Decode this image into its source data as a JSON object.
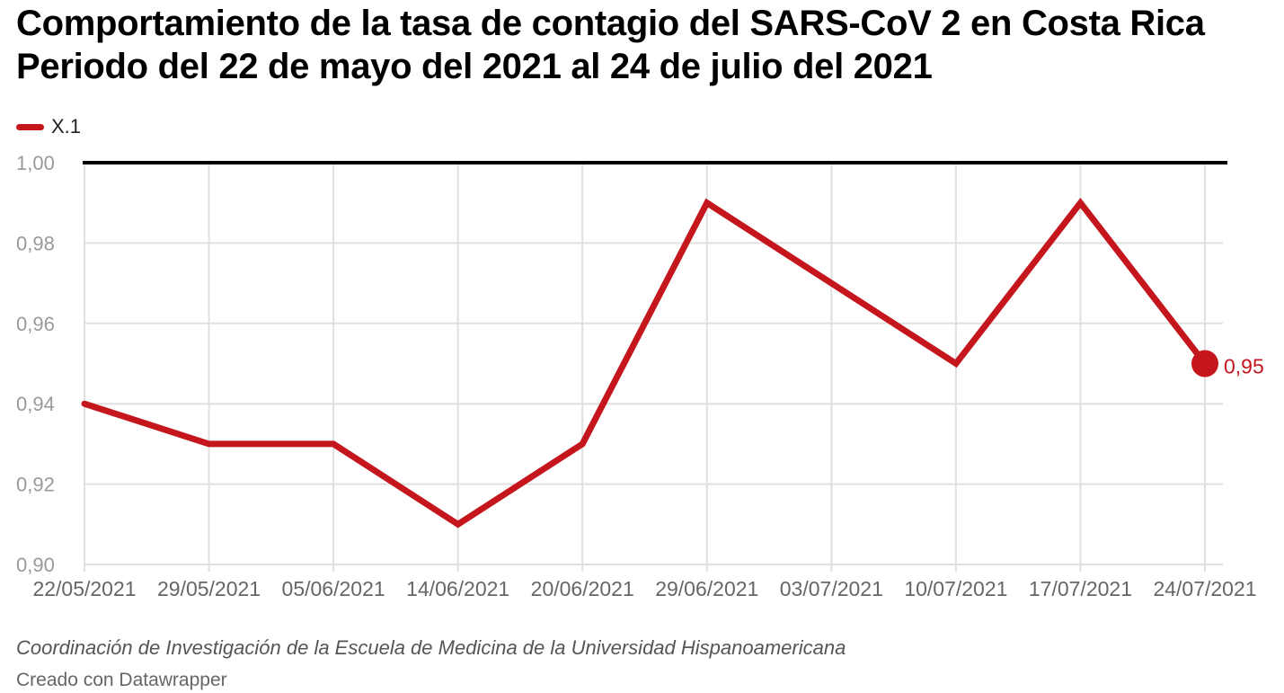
{
  "header": {
    "title_line1": "Comportamiento de la tasa de contagio del SARS-CoV 2 en Costa Rica",
    "title_line2": "Periodo del 22 de mayo del 2021 al 24 de julio del 2021"
  },
  "footer": {
    "source": "Coordinación de Investigación de la Escuela de Medicina de la Universidad Hispanoamericana",
    "credit": "Creado con Datawrapper"
  },
  "colors": {
    "series": "#c4161c",
    "reference_line": "#000000",
    "grid": "#e0e0e0",
    "tick_label": "#999999",
    "x_tick_label": "#666666"
  },
  "chart_data": {
    "type": "line",
    "title": "Comportamiento de la tasa de contagio del SARS-CoV 2 en Costa Rica",
    "subtitle": "Periodo del 22 de mayo del 2021 al 24 de julio del 2021",
    "categories": [
      "22/05/2021",
      "29/05/2021",
      "05/06/2021",
      "14/06/2021",
      "20/06/2021",
      "29/06/2021",
      "03/07/2021",
      "10/07/2021",
      "17/07/2021",
      "24/07/2021"
    ],
    "series": [
      {
        "name": "X.1",
        "values": [
          0.94,
          0.93,
          0.93,
          0.91,
          0.93,
          0.99,
          0.97,
          0.95,
          0.99,
          0.95
        ]
      }
    ],
    "ylim": [
      0.9,
      1.0
    ],
    "yticks": [
      1.0,
      0.98,
      0.96,
      0.94,
      0.92,
      0.9
    ],
    "ytick_labels": [
      "1,00",
      "0,98",
      "0,96",
      "0,94",
      "0,92",
      "0,90"
    ],
    "reference_line": 1.0,
    "end_label": "0,95",
    "grid": true,
    "legend_position": "top-left"
  }
}
